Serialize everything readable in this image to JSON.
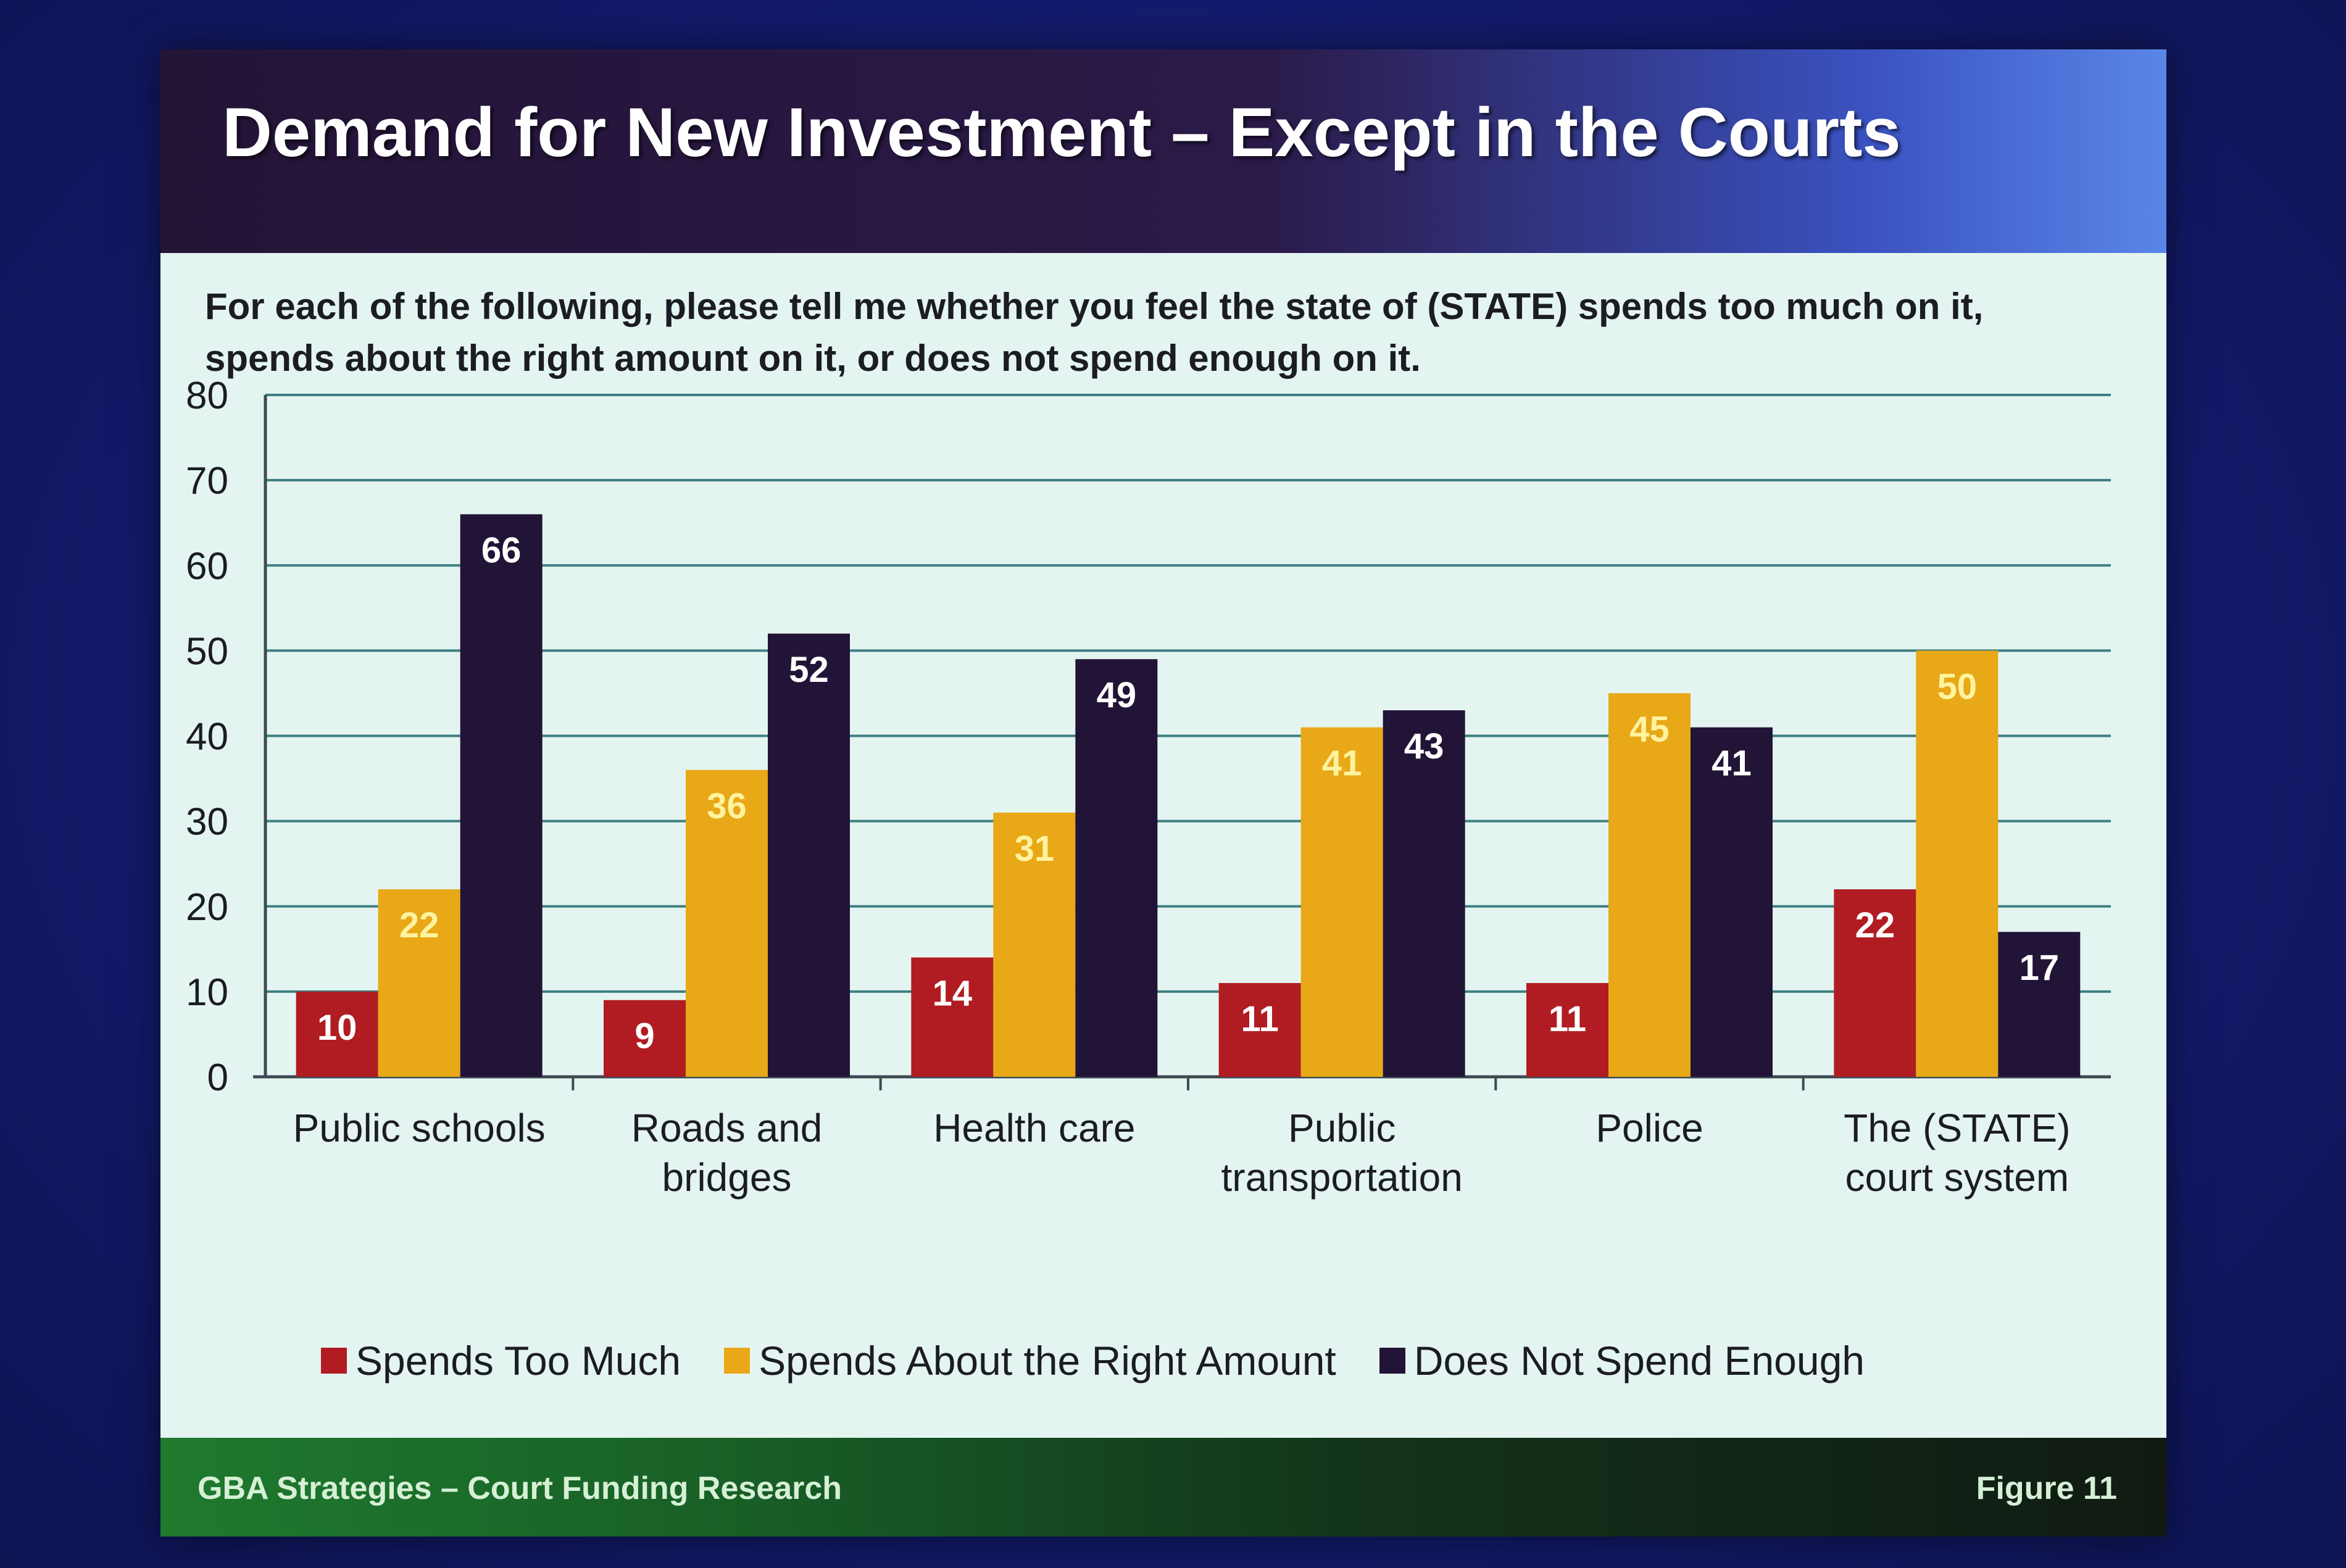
{
  "slide": {
    "title": "Demand for New Investment – Except in the Courts",
    "question": "For each of the following, please tell me whether you feel the state of (STATE) spends too much on it, spends about the right amount on it, or does not spend enough on it.",
    "footer_left": "GBA Strategies – Court Funding Research",
    "footer_right": "Figure  11"
  },
  "colors": {
    "too_much": "#b01c22",
    "right_amount": "#e8a817",
    "not_enough": "#221436",
    "bar_label_light": "#ffffff",
    "bar_label_yellow": "#fff3a0",
    "grid": "#3f7f82"
  },
  "chart_data": {
    "type": "bar",
    "title": "",
    "xlabel": "",
    "ylabel": "",
    "ylim": [
      0,
      80
    ],
    "yticks": [
      0,
      10,
      20,
      30,
      40,
      50,
      60,
      70,
      80
    ],
    "grid": true,
    "legend_position": "bottom",
    "categories": [
      [
        "Public schools"
      ],
      [
        "Roads and",
        "bridges"
      ],
      [
        "Health care"
      ],
      [
        "Public",
        "transportation"
      ],
      [
        "Police"
      ],
      [
        "The (STATE)",
        "court system"
      ]
    ],
    "series": [
      {
        "name": "Spends Too Much",
        "color": "#b01c22",
        "values": [
          10,
          9,
          14,
          11,
          11,
          22
        ]
      },
      {
        "name": "Spends About the Right Amount",
        "color": "#e8a817",
        "values": [
          22,
          36,
          31,
          41,
          45,
          50
        ]
      },
      {
        "name": "Does Not Spend Enough",
        "color": "#221436",
        "values": [
          66,
          52,
          49,
          43,
          41,
          17
        ]
      }
    ]
  }
}
